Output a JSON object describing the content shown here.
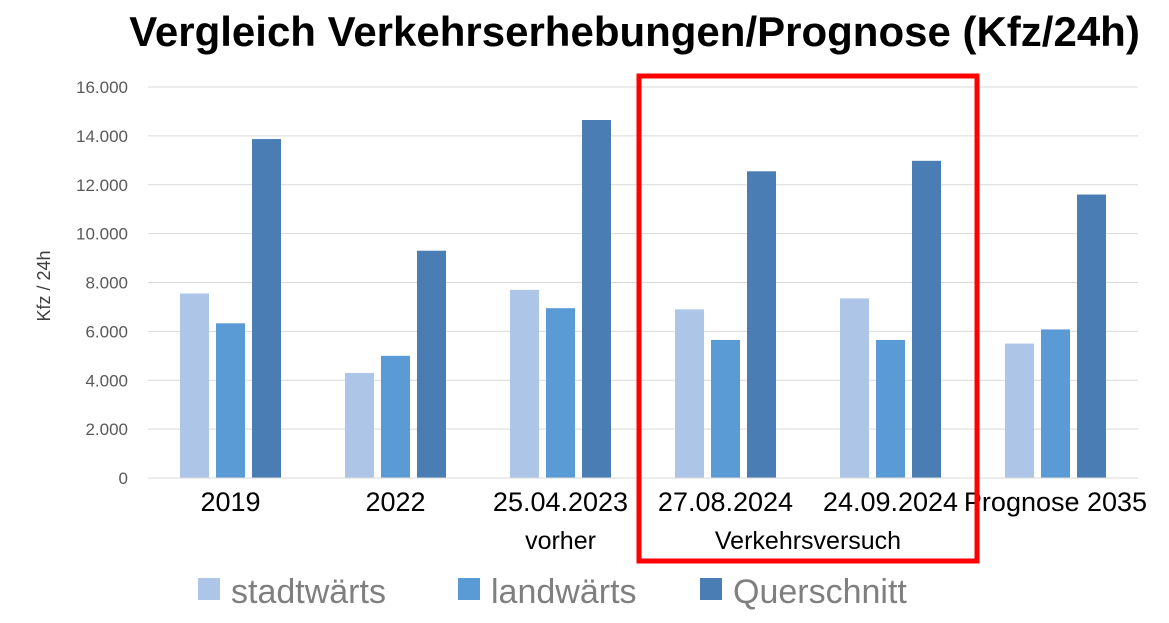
{
  "title": "Vergleich Verkehrserhebungen/Prognose (Kfz/24h)",
  "chart_data": {
    "type": "bar",
    "title": "Vergleich Verkehrserhebungen/Prognose (Kfz/24h)",
    "ylabel": "Kfz / 24h",
    "xlabel": "",
    "ylim": [
      0,
      16000
    ],
    "yticks": [
      0,
      2000,
      4000,
      6000,
      8000,
      10000,
      12000,
      14000,
      16000
    ],
    "ytick_labels": [
      "0",
      "2.000",
      "4.000",
      "6.000",
      "8.000",
      "10.000",
      "12.000",
      "14.000",
      "16.000"
    ],
    "grid": true,
    "legend_position": "bottom",
    "categories": [
      "2019",
      "2022",
      "25.04.2023",
      "27.08.2024",
      "24.09.2024",
      "Prognose 2035"
    ],
    "category_sublabels": [
      "",
      "",
      "vorher",
      "",
      "",
      ""
    ],
    "group_labels": [
      {
        "label": "Verkehrsversuch",
        "categories": [
          "27.08.2024",
          "24.09.2024"
        ],
        "highlight": true,
        "highlight_color": "#ff0000"
      }
    ],
    "series": [
      {
        "name": "stadtwärts",
        "color": "#adc5e7",
        "values": [
          7550,
          4300,
          7700,
          6900,
          7350,
          5500
        ]
      },
      {
        "name": "landwärts",
        "color": "#5b9bd5",
        "values": [
          6330,
          5000,
          6950,
          5650,
          5650,
          6080
        ]
      },
      {
        "name": "Querschnitt",
        "color": "#4a7db3",
        "values": [
          13870,
          9300,
          14650,
          12550,
          12980,
          11600
        ]
      }
    ]
  }
}
